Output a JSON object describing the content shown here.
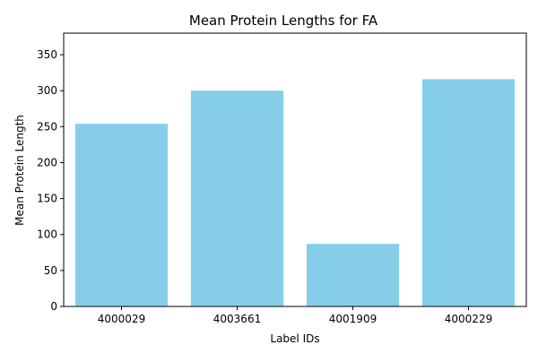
{
  "chart_data": {
    "type": "bar",
    "title": "Mean Protein Lengths for FA",
    "xlabel": "Label IDs",
    "ylabel": "Mean Protein Length",
    "categories": [
      "4000029",
      "4003661",
      "4001909",
      "4000229"
    ],
    "values": [
      254,
      300,
      87,
      316
    ],
    "ylim": [
      0,
      380
    ],
    "yticks": [
      0,
      50,
      100,
      150,
      200,
      250,
      300,
      350
    ],
    "grid": false,
    "legend": "none",
    "bar_color": "#87CEEB",
    "axis_color": "#000000"
  }
}
